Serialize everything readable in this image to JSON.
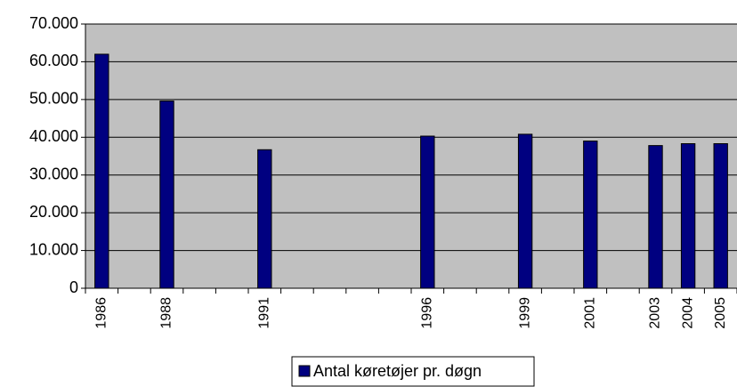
{
  "chart_data": {
    "type": "bar",
    "categories": [
      "1986",
      null,
      "1988",
      null,
      null,
      "1991",
      null,
      null,
      null,
      null,
      "1996",
      null,
      null,
      "1999",
      null,
      "2001",
      null,
      "2003",
      "2004",
      "2005"
    ],
    "series": [
      {
        "name": "Antal køretøjer pr. døgn",
        "color": "#000080",
        "values": [
          62000,
          null,
          49600,
          null,
          null,
          36700,
          null,
          null,
          null,
          null,
          40300,
          null,
          null,
          40800,
          null,
          39000,
          null,
          37800,
          38300,
          38300
        ]
      }
    ],
    "ylim": [
      0,
      70000
    ],
    "yticks": [
      0,
      {
        "value": 10000,
        "label": "10.000"
      },
      {
        "value": 20000,
        "label": "20.000"
      },
      {
        "value": 30000,
        "label": "30.000"
      },
      {
        "value": 40000,
        "label": "40.000"
      },
      {
        "value": 50000,
        "label": "50.000"
      },
      {
        "value": 60000,
        "label": "60.000"
      },
      {
        "value": 70000,
        "label": "70.000"
      }
    ],
    "grid": true,
    "legend": "bottom"
  }
}
